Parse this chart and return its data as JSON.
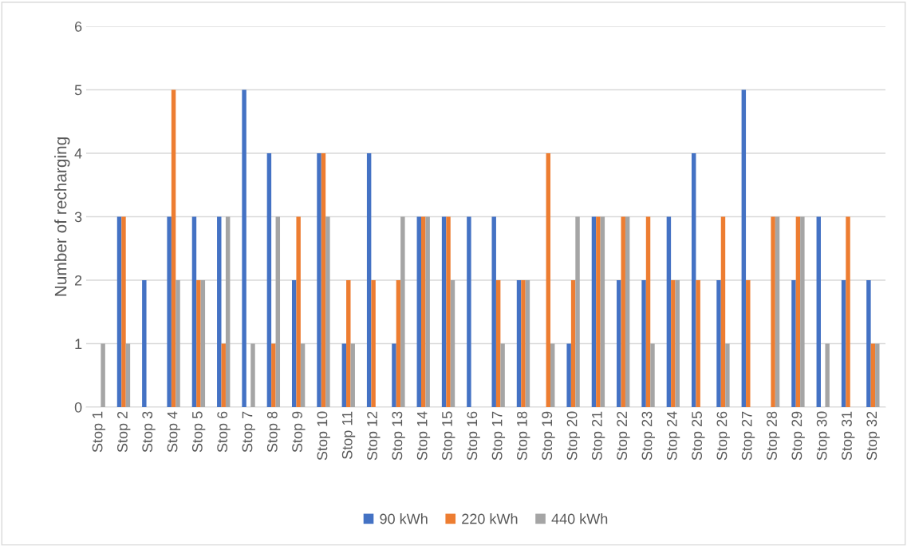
{
  "chart_data": {
    "type": "bar",
    "ylabel": "Number of recharging",
    "categories": [
      "Stop 1",
      "Stop 2",
      "Stop 3",
      "Stop 4",
      "Stop 5",
      "Stop 6",
      "Stop 7",
      "Stop 8",
      "Stop 9",
      "Stop 10",
      "Stop 11",
      "Stop 12",
      "Stop 13",
      "Stop 14",
      "Stop 15",
      "Stop 16",
      "Stop 17",
      "Stop 18",
      "Stop 19",
      "Stop 20",
      "Stop 21",
      "Stop 22",
      "Stop 23",
      "Stop 24",
      "Stop 25",
      "Stop 26",
      "Stop 27",
      "Stop 28",
      "Stop 29",
      "Stop 30",
      "Stop 31",
      "Stop 32"
    ],
    "series": [
      {
        "name": "90 kWh",
        "color": "#4472c4",
        "values": [
          0,
          3,
          2,
          3,
          3,
          3,
          5,
          4,
          2,
          4,
          1,
          4,
          1,
          3,
          3,
          3,
          3,
          2,
          0,
          1,
          3,
          2,
          2,
          3,
          4,
          2,
          5,
          0,
          2,
          3,
          2,
          2
        ]
      },
      {
        "name": "220 kWh",
        "color": "#ed7d31",
        "values": [
          0,
          3,
          0,
          5,
          2,
          1,
          0,
          1,
          3,
          4,
          2,
          2,
          2,
          3,
          3,
          0,
          2,
          2,
          4,
          2,
          3,
          3,
          3,
          2,
          2,
          3,
          2,
          3,
          3,
          0,
          3,
          1
        ]
      },
      {
        "name": "440 kWh",
        "color": "#a5a5a5",
        "values": [
          1,
          1,
          0,
          2,
          2,
          3,
          1,
          3,
          1,
          3,
          1,
          0,
          3,
          3,
          2,
          0,
          1,
          2,
          1,
          3,
          3,
          3,
          1,
          2,
          0,
          1,
          0,
          3,
          3,
          1,
          0,
          1
        ]
      }
    ],
    "ylim": [
      0,
      6
    ],
    "yticks": [
      0,
      1,
      2,
      3,
      4,
      5,
      6
    ],
    "grid": "y",
    "legend": "bottom"
  }
}
